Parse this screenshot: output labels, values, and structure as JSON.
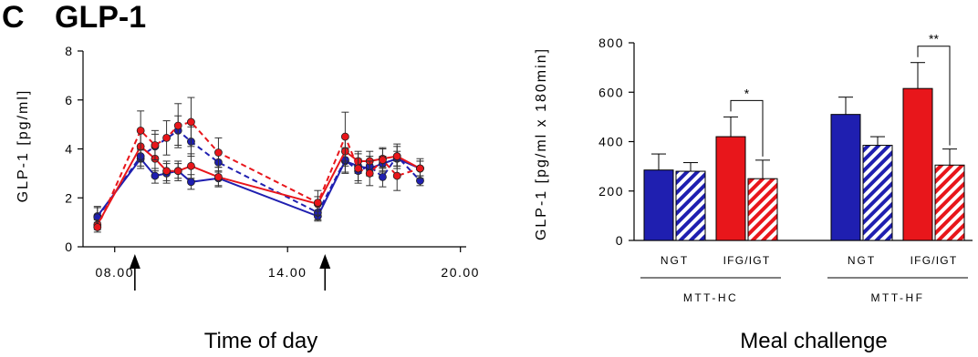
{
  "figure": {
    "panel_letter": "C",
    "panel_title": "GLP-1"
  },
  "colors": {
    "blue": "#1f1fb0",
    "red": "#e8161b",
    "axis": "#000000"
  },
  "chart_data": [
    {
      "type": "line",
      "ylabel": "GLP-1 [pg/ml]",
      "xlabel": "Time of  day",
      "ylim": [
        0,
        8
      ],
      "yticks": [
        "0",
        "2",
        "4",
        "6",
        "8"
      ],
      "xlim": [
        6.9,
        20.2
      ],
      "xticks": [
        {
          "value": 8,
          "label": "08.00"
        },
        {
          "value": 14,
          "label": "14.00"
        },
        {
          "value": 20,
          "label": "20.00"
        }
      ],
      "arrows_at": [
        8.7,
        15.3
      ],
      "series": [
        {
          "color": "blue",
          "style": "solid",
          "points": [
            [
              7.4,
              1.25
            ],
            [
              8.9,
              3.6
            ],
            [
              9.4,
              2.9
            ],
            [
              9.8,
              3.0
            ],
            [
              10.2,
              3.1
            ],
            [
              10.65,
              2.65
            ],
            [
              11.6,
              2.8
            ],
            [
              15.05,
              1.25
            ],
            [
              16.0,
              3.5
            ],
            [
              16.45,
              3.3
            ],
            [
              16.85,
              3.2
            ],
            [
              17.3,
              3.4
            ],
            [
              17.8,
              3.6
            ],
            [
              18.6,
              3.2
            ]
          ],
          "errors": [
            0.4,
            0.4,
            0.3,
            0.4,
            0.3,
            0.3,
            0.3,
            0.2,
            0.5,
            0.3,
            0.3,
            0.3,
            0.3,
            0.3
          ]
        },
        {
          "color": "blue",
          "style": "dashed",
          "points": [
            [
              7.4,
              1.2
            ],
            [
              8.9,
              3.7
            ],
            [
              9.4,
              4.1
            ],
            [
              10.2,
              4.75
            ],
            [
              10.65,
              4.3
            ],
            [
              11.6,
              3.45
            ],
            [
              15.05,
              1.4
            ],
            [
              16.0,
              3.55
            ],
            [
              16.45,
              3.1
            ],
            [
              16.85,
              3.3
            ],
            [
              17.3,
              2.85
            ],
            [
              17.8,
              3.7
            ],
            [
              18.6,
              2.7
            ]
          ],
          "errors": [
            0.4,
            0.4,
            0.5,
            0.6,
            0.6,
            0.4,
            0.3,
            0.5,
            0.4,
            0.4,
            0.4,
            0.5,
            0.2
          ]
        },
        {
          "color": "red",
          "style": "solid",
          "points": [
            [
              7.4,
              0.9
            ],
            [
              8.9,
              4.1
            ],
            [
              9.4,
              3.6
            ],
            [
              9.8,
              3.1
            ],
            [
              10.2,
              3.1
            ],
            [
              10.65,
              3.3
            ],
            [
              11.6,
              2.85
            ],
            [
              15.05,
              1.75
            ],
            [
              16.0,
              3.9
            ],
            [
              16.45,
              3.5
            ],
            [
              16.85,
              3.5
            ],
            [
              17.3,
              3.6
            ],
            [
              17.8,
              3.7
            ],
            [
              18.6,
              3.2
            ]
          ],
          "errors": [
            0.2,
            0.6,
            0.5,
            0.4,
            0.4,
            0.5,
            0.4,
            0.3,
            0.6,
            0.4,
            0.4,
            0.4,
            0.4,
            0.3
          ]
        },
        {
          "color": "red",
          "style": "dashed",
          "points": [
            [
              7.4,
              0.8
            ],
            [
              8.9,
              4.75
            ],
            [
              9.4,
              4.15
            ],
            [
              9.8,
              4.45
            ],
            [
              10.2,
              4.95
            ],
            [
              10.65,
              5.1
            ],
            [
              11.6,
              3.85
            ],
            [
              15.05,
              1.8
            ],
            [
              16.0,
              4.5
            ],
            [
              16.45,
              3.2
            ],
            [
              16.85,
              3.0
            ],
            [
              17.3,
              3.55
            ],
            [
              17.8,
              2.9
            ],
            [
              18.6,
              3.2
            ]
          ],
          "errors": [
            0.2,
            0.8,
            0.6,
            0.7,
            0.9,
            1.0,
            0.6,
            0.5,
            1.0,
            0.6,
            0.5,
            0.5,
            0.6,
            0.4
          ]
        }
      ]
    },
    {
      "type": "bar",
      "ylabel": "GLP-1 [pg/ml x 180min]",
      "xlabel": "Meal challenge",
      "ylim": [
        0,
        800
      ],
      "yticks": [
        "0",
        "200",
        "400",
        "600",
        "800"
      ],
      "groups": [
        {
          "label": "MTT-HC",
          "bars": [
            {
              "label": "NGT",
              "value": 285,
              "error": 65,
              "color": "blue",
              "hatched": false
            },
            {
              "label": "NGT",
              "value": 280,
              "error": 35,
              "color": "blue",
              "hatched": true
            },
            {
              "label": "IFG/IGT",
              "value": 420,
              "error": 80,
              "color": "red",
              "hatched": false
            },
            {
              "label": "IFG/IGT",
              "value": 250,
              "error": 75,
              "color": "red",
              "hatched": true
            }
          ],
          "significance": "*"
        },
        {
          "label": "MTT-HF",
          "bars": [
            {
              "label": "NGT",
              "value": 510,
              "error": 70,
              "color": "blue",
              "hatched": false
            },
            {
              "label": "NGT",
              "value": 385,
              "error": 35,
              "color": "blue",
              "hatched": true
            },
            {
              "label": "IFG/IGT",
              "value": 615,
              "error": 105,
              "color": "red",
              "hatched": false
            },
            {
              "label": "IFG/IGT",
              "value": 305,
              "error": 65,
              "color": "red",
              "hatched": true
            }
          ],
          "significance": "**"
        }
      ]
    }
  ]
}
